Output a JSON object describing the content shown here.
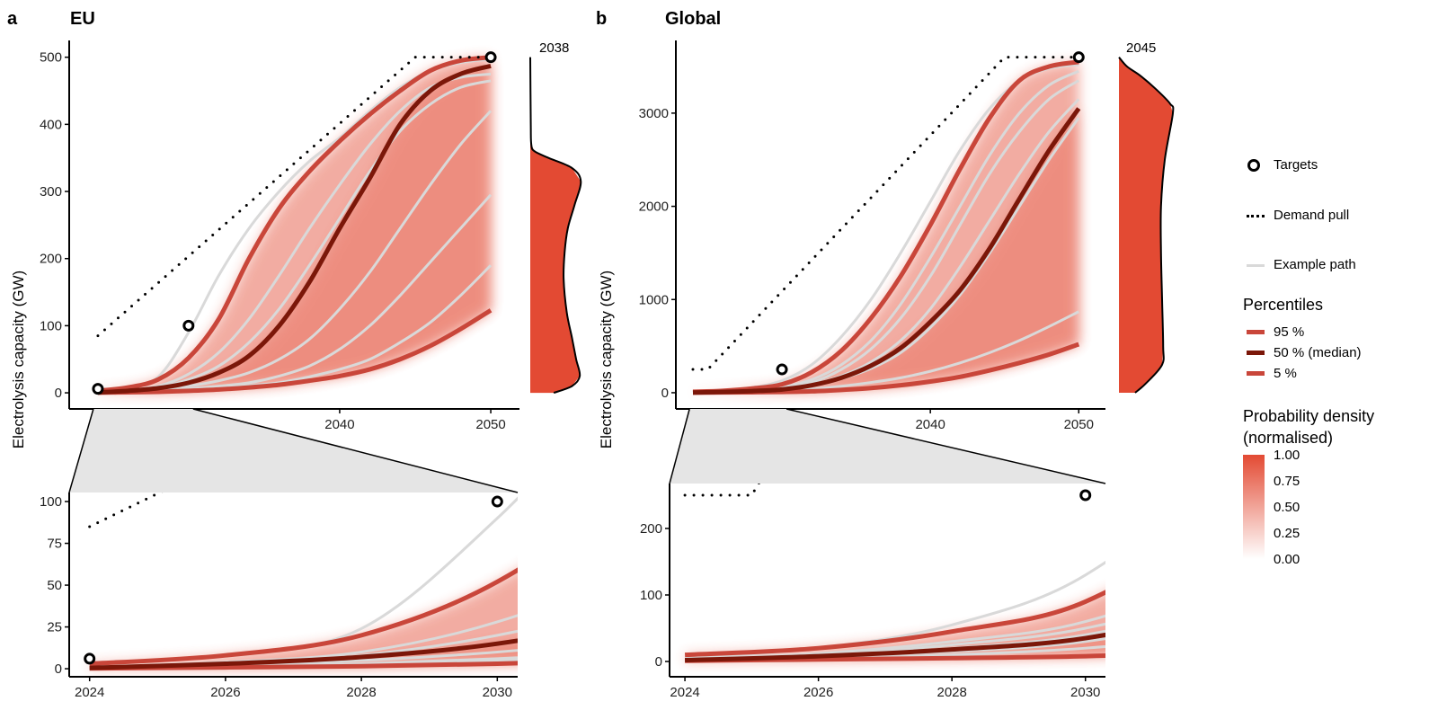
{
  "panels": [
    {
      "letter": "a",
      "title": "EU",
      "density_year": "2038"
    },
    {
      "letter": "b",
      "title": "Global",
      "density_year": "2045"
    }
  ],
  "y_axis_label": "Electrolysis capacity (GW)",
  "legend": {
    "targets": "Targets",
    "demand_pull": "Demand pull",
    "example_path": "Example path",
    "percentiles_title": "Percentiles",
    "p95": "95 %",
    "p50": "50 % (median)",
    "p5": "5 %",
    "density_title_1": "Probability density",
    "density_title_2": "(normalised)",
    "density_ticks": [
      "1.00",
      "0.75",
      "0.50",
      "0.25",
      "0.00"
    ]
  },
  "colors": {
    "percentile_outer": "#c9463a",
    "median": "#7b1709",
    "density": "#e34a33",
    "example_path": "#d9d9d9",
    "zoom_band": "#e5e5e5"
  },
  "chart_data": [
    {
      "type": "line",
      "panel": "EU",
      "ylabel": "Electrolysis capacity (GW)",
      "main": {
        "xlim": [
          2022.1,
          2051.9
        ],
        "ylim": [
          -24,
          525
        ],
        "xticks": [
          2030,
          2040,
          2050
        ],
        "yticks": [
          0,
          100,
          200,
          300,
          400,
          500
        ]
      },
      "inset": {
        "xlim": [
          2023.7,
          2030.3
        ],
        "ylim": [
          -4.8,
          105.4
        ],
        "xticks": [
          2024,
          2026,
          2028,
          2030
        ],
        "yticks": [
          0,
          25,
          50,
          75,
          100
        ]
      },
      "x": [
        2024,
        2026,
        2028,
        2030,
        2032,
        2034,
        2036,
        2038,
        2040,
        2042,
        2044,
        2046,
        2048,
        2050
      ],
      "percentiles": {
        "p95": [
          3,
          8,
          20,
          52,
          110,
          200,
          275,
          330,
          375,
          415,
          450,
          480,
          495,
          500
        ],
        "p50": [
          0.5,
          3,
          7,
          15,
          30,
          55,
          100,
          165,
          245,
          320,
          400,
          450,
          475,
          487
        ],
        "p5": [
          0.2,
          0.8,
          1.5,
          3,
          5,
          8,
          12,
          18,
          25,
          35,
          50,
          70,
          95,
          123
        ]
      },
      "example_paths": [
        [
          3,
          8,
          24,
          90,
          175,
          245,
          300,
          345,
          380,
          420,
          455,
          480,
          492,
          497
        ],
        [
          1,
          4,
          10,
          28,
          60,
          110,
          175,
          245,
          310,
          370,
          420,
          455,
          470,
          475
        ],
        [
          1,
          3,
          8,
          20,
          40,
          75,
          125,
          190,
          260,
          330,
          390,
          430,
          455,
          465
        ],
        [
          0.5,
          2,
          5,
          10,
          18,
          30,
          50,
          80,
          125,
          180,
          245,
          310,
          370,
          420
        ],
        [
          0.3,
          1,
          3,
          6,
          10,
          15,
          25,
          40,
          65,
          100,
          145,
          195,
          245,
          295
        ],
        [
          0.2,
          1,
          2,
          5,
          8,
          11,
          15,
          24,
          35,
          50,
          75,
          105,
          145,
          190
        ]
      ],
      "demand_pull": {
        "x": [
          2024,
          2045,
          2050
        ],
        "y": [
          85,
          500,
          500
        ]
      },
      "targets": {
        "x": [
          2024,
          2030,
          2050
        ],
        "y": [
          6,
          100,
          500
        ]
      },
      "marginal_density": {
        "year": 2038,
        "capacity": [
          0,
          10,
          25,
          50,
          82,
          120,
          170,
          210,
          245,
          280,
          315,
          335,
          350,
          360,
          370,
          400,
          500
        ],
        "density": [
          0.45,
          0.8,
          0.95,
          0.88,
          0.8,
          0.7,
          0.64,
          0.66,
          0.72,
          0.85,
          0.97,
          0.8,
          0.35,
          0.08,
          0.02,
          0.01,
          0
        ]
      }
    },
    {
      "type": "line",
      "panel": "Global",
      "ylabel": "Electrolysis capacity (GW)",
      "main": {
        "xlim": [
          2022.85,
          2051.8
        ],
        "ylim": [
          -174,
          3780
        ],
        "xticks": [
          2030,
          2040,
          2050
        ],
        "yticks": [
          0,
          1000,
          2000,
          3000
        ]
      },
      "inset": {
        "xlim": [
          2023.77,
          2030.3
        ],
        "ylim": [
          -23,
          267.6
        ],
        "xticks": [
          2024,
          2026,
          2028,
          2030
        ],
        "yticks": [
          0,
          100,
          200
        ]
      },
      "x": [
        2024,
        2026,
        2028,
        2030,
        2032,
        2034,
        2036,
        2038,
        2040,
        2042,
        2044,
        2046,
        2048,
        2050
      ],
      "percentiles": {
        "p95": [
          10,
          20,
          45,
          90,
          220,
          450,
          800,
          1250,
          1800,
          2400,
          2950,
          3350,
          3500,
          3550
        ],
        "p50": [
          2,
          8,
          18,
          35,
          80,
          160,
          290,
          480,
          760,
          1100,
          1550,
          2080,
          2600,
          3050
        ],
        "p5": [
          1,
          3,
          5,
          8,
          15,
          30,
          50,
          80,
          120,
          170,
          240,
          320,
          410,
          520
        ]
      },
      "example_paths": [
        [
          5,
          20,
          55,
          130,
          300,
          600,
          1000,
          1500,
          2050,
          2600,
          3050,
          3350,
          3480,
          3520
        ],
        [
          3,
          12,
          30,
          60,
          140,
          300,
          560,
          950,
          1450,
          2000,
          2550,
          3000,
          3300,
          3450
        ],
        [
          3,
          10,
          25,
          50,
          110,
          250,
          470,
          800,
          1250,
          1800,
          2350,
          2800,
          3150,
          3350
        ],
        [
          2,
          8,
          20,
          40,
          90,
          180,
          330,
          560,
          900,
          1350,
          1850,
          2350,
          2800,
          3150
        ],
        [
          2,
          7,
          15,
          30,
          70,
          150,
          260,
          430,
          700,
          1050,
          1500,
          2000,
          2500,
          2950
        ],
        [
          1,
          4,
          10,
          20,
          40,
          70,
          110,
          160,
          230,
          320,
          430,
          560,
          710,
          870
        ]
      ],
      "demand_pull": {
        "x": [
          2024,
          2025,
          2045,
          2050
        ],
        "y": [
          250,
          250,
          3600,
          3600
        ]
      },
      "targets": {
        "x": [
          2030,
          2050
        ],
        "y": [
          250,
          3600
        ]
      },
      "marginal_density": {
        "year": 2045,
        "capacity": [
          0,
          100,
          300,
          500,
          1000,
          1500,
          2000,
          2500,
          3000,
          3100,
          3250,
          3400,
          3500,
          3600
        ],
        "density": [
          0.3,
          0.5,
          0.8,
          0.82,
          0.8,
          0.78,
          0.78,
          0.85,
          1.0,
          0.95,
          0.7,
          0.4,
          0.15,
          0
        ]
      }
    }
  ]
}
